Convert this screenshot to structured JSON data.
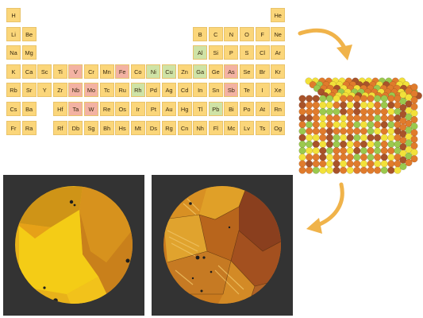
{
  "periodic_table": {
    "elements": [
      {
        "symbol": "H",
        "row": 1,
        "col": 1,
        "color": "#fbd67a"
      },
      {
        "symbol": "He",
        "row": 1,
        "col": 18,
        "color": "#fbd67a"
      },
      {
        "symbol": "Li",
        "row": 2,
        "col": 1,
        "color": "#fbd67a"
      },
      {
        "symbol": "Be",
        "row": 2,
        "col": 2,
        "color": "#fbd67a"
      },
      {
        "symbol": "B",
        "row": 2,
        "col": 13,
        "color": "#fbd67a"
      },
      {
        "symbol": "C",
        "row": 2,
        "col": 14,
        "color": "#fbd67a"
      },
      {
        "symbol": "N",
        "row": 2,
        "col": 15,
        "color": "#fbd67a"
      },
      {
        "symbol": "O",
        "row": 2,
        "col": 16,
        "color": "#fbd67a"
      },
      {
        "symbol": "F",
        "row": 2,
        "col": 17,
        "color": "#fbd67a"
      },
      {
        "symbol": "Ne",
        "row": 2,
        "col": 18,
        "color": "#fbd67a"
      },
      {
        "symbol": "Na",
        "row": 3,
        "col": 1,
        "color": "#fbd67a"
      },
      {
        "symbol": "Mg",
        "row": 3,
        "col": 2,
        "color": "#fbd67a"
      },
      {
        "symbol": "Al",
        "row": 3,
        "col": 13,
        "color": "#cfe3a6"
      },
      {
        "symbol": "Si",
        "row": 3,
        "col": 14,
        "color": "#fbd67a"
      },
      {
        "symbol": "P",
        "row": 3,
        "col": 15,
        "color": "#fbd67a"
      },
      {
        "symbol": "S",
        "row": 3,
        "col": 16,
        "color": "#fbd67a"
      },
      {
        "symbol": "Cl",
        "row": 3,
        "col": 17,
        "color": "#fbd67a"
      },
      {
        "symbol": "Ar",
        "row": 3,
        "col": 18,
        "color": "#fbd67a"
      },
      {
        "symbol": "K",
        "row": 4,
        "col": 1,
        "color": "#fbd67a"
      },
      {
        "symbol": "Ca",
        "row": 4,
        "col": 2,
        "color": "#fbd67a"
      },
      {
        "symbol": "Sc",
        "row": 4,
        "col": 3,
        "color": "#fbd67a"
      },
      {
        "symbol": "Ti",
        "row": 4,
        "col": 4,
        "color": "#fbd67a"
      },
      {
        "symbol": "V",
        "row": 4,
        "col": 5,
        "color": "#f3b2a3"
      },
      {
        "symbol": "Cr",
        "row": 4,
        "col": 6,
        "color": "#fbd67a"
      },
      {
        "symbol": "Mn",
        "row": 4,
        "col": 7,
        "color": "#fbd67a"
      },
      {
        "symbol": "Fe",
        "row": 4,
        "col": 8,
        "color": "#f3b2a3"
      },
      {
        "symbol": "Co",
        "row": 4,
        "col": 9,
        "color": "#fbd67a"
      },
      {
        "symbol": "Ni",
        "row": 4,
        "col": 10,
        "color": "#cfe3a6"
      },
      {
        "symbol": "Cu",
        "row": 4,
        "col": 11,
        "color": "#cfe3a6"
      },
      {
        "symbol": "Zn",
        "row": 4,
        "col": 12,
        "color": "#fbd67a"
      },
      {
        "symbol": "Ga",
        "row": 4,
        "col": 13,
        "color": "#cfe3a6"
      },
      {
        "symbol": "Ge",
        "row": 4,
        "col": 14,
        "color": "#fbd67a"
      },
      {
        "symbol": "As",
        "row": 4,
        "col": 15,
        "color": "#f3b2a3"
      },
      {
        "symbol": "Se",
        "row": 4,
        "col": 16,
        "color": "#fbd67a"
      },
      {
        "symbol": "Br",
        "row": 4,
        "col": 17,
        "color": "#fbd67a"
      },
      {
        "symbol": "Kr",
        "row": 4,
        "col": 18,
        "color": "#fbd67a"
      },
      {
        "symbol": "Rb",
        "row": 5,
        "col": 1,
        "color": "#fbd67a"
      },
      {
        "symbol": "Sr",
        "row": 5,
        "col": 2,
        "color": "#fbd67a"
      },
      {
        "symbol": "Y",
        "row": 5,
        "col": 3,
        "color": "#fbd67a"
      },
      {
        "symbol": "Zr",
        "row": 5,
        "col": 4,
        "color": "#fbd67a"
      },
      {
        "symbol": "Nb",
        "row": 5,
        "col": 5,
        "color": "#f3b2a3"
      },
      {
        "symbol": "Mo",
        "row": 5,
        "col": 6,
        "color": "#f3b2a3"
      },
      {
        "symbol": "Tc",
        "row": 5,
        "col": 7,
        "color": "#fbd67a"
      },
      {
        "symbol": "Ru",
        "row": 5,
        "col": 8,
        "color": "#fbd67a"
      },
      {
        "symbol": "Rh",
        "row": 5,
        "col": 9,
        "color": "#cfe3a6"
      },
      {
        "symbol": "Pd",
        "row": 5,
        "col": 10,
        "color": "#fbd67a"
      },
      {
        "symbol": "Ag",
        "row": 5,
        "col": 11,
        "color": "#fbd67a"
      },
      {
        "symbol": "Cd",
        "row": 5,
        "col": 12,
        "color": "#fbd67a"
      },
      {
        "symbol": "In",
        "row": 5,
        "col": 13,
        "color": "#fbd67a"
      },
      {
        "symbol": "Sn",
        "row": 5,
        "col": 14,
        "color": "#fbd67a"
      },
      {
        "symbol": "Sb",
        "row": 5,
        "col": 15,
        "color": "#f3b2a3"
      },
      {
        "symbol": "Te",
        "row": 5,
        "col": 16,
        "color": "#fbd67a"
      },
      {
        "symbol": "I",
        "row": 5,
        "col": 17,
        "color": "#fbd67a"
      },
      {
        "symbol": "Xe",
        "row": 5,
        "col": 18,
        "color": "#fbd67a"
      },
      {
        "symbol": "Cs",
        "row": 6,
        "col": 1,
        "color": "#fbd67a"
      },
      {
        "symbol": "Ba",
        "row": 6,
        "col": 2,
        "color": "#fbd67a"
      },
      {
        "symbol": "Hf",
        "row": 6,
        "col": 4,
        "color": "#fbd67a"
      },
      {
        "symbol": "Ta",
        "row": 6,
        "col": 5,
        "color": "#f3b2a3"
      },
      {
        "symbol": "W",
        "row": 6,
        "col": 6,
        "color": "#f3b2a3"
      },
      {
        "symbol": "Re",
        "row": 6,
        "col": 7,
        "color": "#fbd67a"
      },
      {
        "symbol": "Os",
        "row": 6,
        "col": 8,
        "color": "#fbd67a"
      },
      {
        "symbol": "Ir",
        "row": 6,
        "col": 9,
        "color": "#fbd67a"
      },
      {
        "symbol": "Pt",
        "row": 6,
        "col": 10,
        "color": "#fbd67a"
      },
      {
        "symbol": "Au",
        "row": 6,
        "col": 11,
        "color": "#fbd67a"
      },
      {
        "symbol": "Hg",
        "row": 6,
        "col": 12,
        "color": "#fbd67a"
      },
      {
        "symbol": "Tl",
        "row": 6,
        "col": 13,
        "color": "#fbd67a"
      },
      {
        "symbol": "Pb",
        "row": 6,
        "col": 14,
        "color": "#cfe3a6"
      },
      {
        "symbol": "Bi",
        "row": 6,
        "col": 15,
        "color": "#fbd67a"
      },
      {
        "symbol": "Po",
        "row": 6,
        "col": 16,
        "color": "#fbd67a"
      },
      {
        "symbol": "At",
        "row": 6,
        "col": 17,
        "color": "#fbd67a"
      },
      {
        "symbol": "Rn",
        "row": 6,
        "col": 18,
        "color": "#fbd67a"
      },
      {
        "symbol": "Fr",
        "row": 7,
        "col": 1,
        "color": "#fbd67a"
      },
      {
        "symbol": "Ra",
        "row": 7,
        "col": 2,
        "color": "#fbd67a"
      },
      {
        "symbol": "Rf",
        "row": 7,
        "col": 4,
        "color": "#fbd67a"
      },
      {
        "symbol": "Db",
        "row": 7,
        "col": 5,
        "color": "#fbd67a"
      },
      {
        "symbol": "Sg",
        "row": 7,
        "col": 6,
        "color": "#fbd67a"
      },
      {
        "symbol": "Bh",
        "row": 7,
        "col": 7,
        "color": "#fbd67a"
      },
      {
        "symbol": "Hs",
        "row": 7,
        "col": 8,
        "color": "#fbd67a"
      },
      {
        "symbol": "Mt",
        "row": 7,
        "col": 9,
        "color": "#fbd67a"
      },
      {
        "symbol": "Ds",
        "row": 7,
        "col": 10,
        "color": "#fbd67a"
      },
      {
        "symbol": "Rg",
        "row": 7,
        "col": 11,
        "color": "#fbd67a"
      },
      {
        "symbol": "Cn",
        "row": 7,
        "col": 12,
        "color": "#fbd67a"
      },
      {
        "symbol": "Nh",
        "row": 7,
        "col": 13,
        "color": "#fbd67a"
      },
      {
        "symbol": "Fl",
        "row": 7,
        "col": 14,
        "color": "#fbd67a"
      },
      {
        "symbol": "Mc",
        "row": 7,
        "col": 15,
        "color": "#fbd67a"
      },
      {
        "symbol": "Lv",
        "row": 7,
        "col": 16,
        "color": "#fbd67a"
      },
      {
        "symbol": "Ts",
        "row": 7,
        "col": 17,
        "color": "#fbd67a"
      },
      {
        "symbol": "Og",
        "row": 7,
        "col": 18,
        "color": "#fbd67a"
      }
    ]
  },
  "colors": {
    "cell_yellow": "#fbd67a",
    "cell_green": "#cfe3a6",
    "cell_pink": "#f3b2a3",
    "arrow": "#f0b34a",
    "panel_background": "#333333",
    "atom_orange": "#e07b2c",
    "atom_yellow": "#f2e13a",
    "atom_green": "#9ac94e",
    "atom_brown": "#a8532a"
  },
  "atom_cube": {
    "icon": "alloy-atom-cube-icon"
  },
  "arrows": [
    "curved-arrow-right-down-icon",
    "curved-arrow-down-left-icon"
  ],
  "micrographs": [
    {
      "name": "micrograph-left",
      "icon": "coarse-grain-micrograph-icon"
    },
    {
      "name": "micrograph-right",
      "icon": "fine-grain-micrograph-icon"
    }
  ]
}
